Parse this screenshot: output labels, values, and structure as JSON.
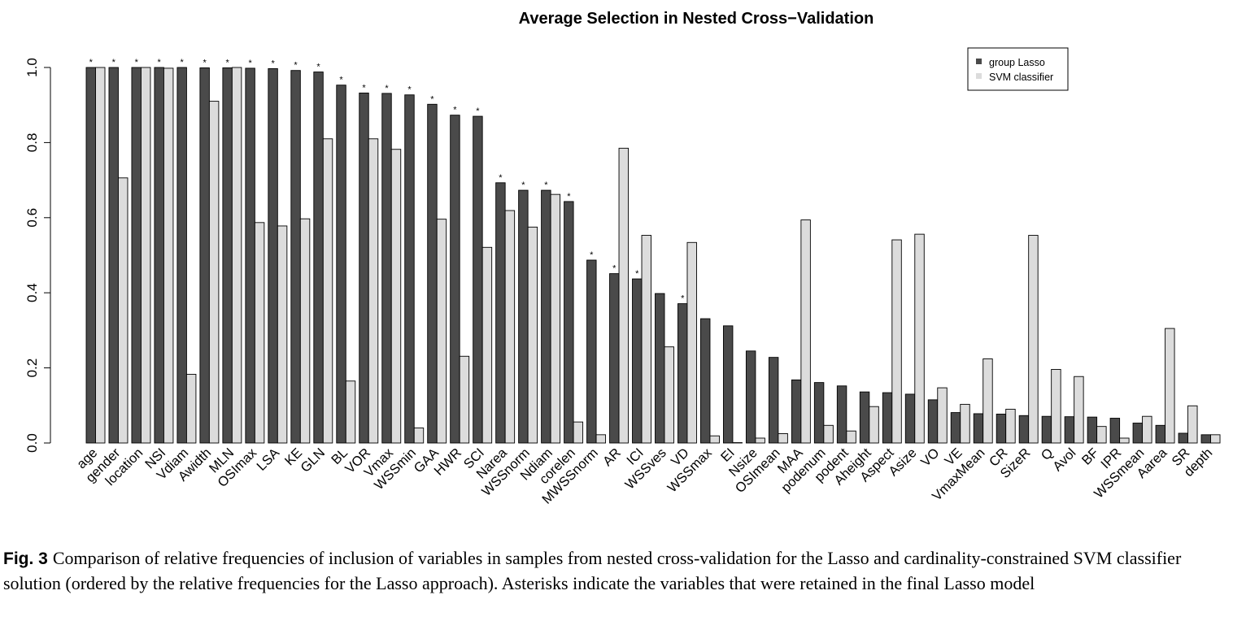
{
  "chart_data": {
    "type": "bar",
    "title": "Average Selection in Nested Cross−Validation",
    "xlabel": "",
    "ylabel": "",
    "ylim": [
      0,
      1.0
    ],
    "yticks": [
      "0.0",
      "0.2",
      "0.4",
      "0.6",
      "0.8",
      "1.0"
    ],
    "grid": false,
    "legend_position": "top-right",
    "categories": [
      "age",
      "gender",
      "location",
      "NSI",
      "Vdiam",
      "Awidth",
      "MLN",
      "OSImax",
      "LSA",
      "KE",
      "GLN",
      "BL",
      "VOR",
      "Vmax",
      "WSSmin",
      "GAA",
      "HWR",
      "SCI",
      "Narea",
      "WSSnorm",
      "Ndiam",
      "corelen",
      "MWSSnorm",
      "AR",
      "ICI",
      "WSSves",
      "VD",
      "WSSmax",
      "EI",
      "Nsize",
      "OSImean",
      "MAA",
      "podenum",
      "podent",
      "Aheight",
      "Aspect",
      "Asize",
      "VO",
      "VE",
      "VmaxMean",
      "CR",
      "SizeR",
      "Q",
      "Avol",
      "BF",
      "IPR",
      "WSSmean",
      "Aarea",
      "SR",
      "depth"
    ],
    "series": [
      {
        "name": "group Lasso",
        "color": "#4a4a4a",
        "values": [
          1.0,
          1.0,
          1.0,
          1.0,
          1.0,
          0.999,
          0.999,
          0.998,
          0.997,
          0.992,
          0.988,
          0.953,
          0.932,
          0.931,
          0.927,
          0.902,
          0.873,
          0.87,
          0.693,
          0.673,
          0.673,
          0.643,
          0.487,
          0.451,
          0.437,
          0.398,
          0.371,
          0.331,
          0.312,
          0.245,
          0.228,
          0.168,
          0.161,
          0.152,
          0.136,
          0.134,
          0.13,
          0.115,
          0.081,
          0.078,
          0.077,
          0.073,
          0.071,
          0.07,
          0.069,
          0.066,
          0.053,
          0.047,
          0.026,
          0.022
        ]
      },
      {
        "name": "SVM classifier",
        "color": "#dcdcdc",
        "values": [
          1.0,
          0.706,
          1.0,
          0.998,
          0.183,
          0.91,
          1.0,
          0.587,
          0.578,
          0.597,
          0.81,
          0.165,
          0.81,
          0.782,
          0.04,
          0.596,
          0.231,
          0.521,
          0.619,
          0.575,
          0.662,
          0.056,
          0.022,
          0.785,
          0.553,
          0.256,
          0.534,
          0.019,
          0.001,
          0.013,
          0.025,
          0.594,
          0.047,
          0.032,
          0.097,
          0.541,
          0.556,
          0.147,
          0.103,
          0.224,
          0.09,
          0.553,
          0.196,
          0.177,
          0.044,
          0.013,
          0.071,
          0.305,
          0.099,
          0.022
        ]
      }
    ],
    "retained_in_final_model": [
      true,
      true,
      true,
      true,
      true,
      true,
      true,
      true,
      true,
      true,
      true,
      true,
      true,
      true,
      true,
      true,
      true,
      true,
      true,
      true,
      true,
      true,
      true,
      true,
      true,
      false,
      true,
      false,
      false,
      false,
      false,
      false,
      false,
      false,
      false,
      false,
      false,
      false,
      false,
      false,
      false,
      false,
      false,
      false,
      false,
      false,
      false,
      false,
      false,
      false
    ],
    "marker": "*"
  },
  "caption": {
    "label": "Fig. 3",
    "text": "Comparison of relative frequencies of inclusion of variables in samples from nested cross-validation for the Lasso and cardinality-constrained SVM classifier solution (ordered by the relative frequencies for the Lasso approach). Asterisks indicate the variables that were retained in the final Lasso model"
  }
}
